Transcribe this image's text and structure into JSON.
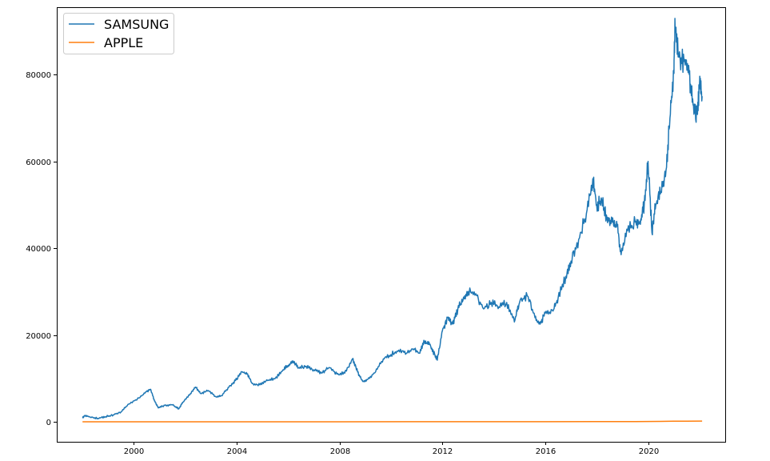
{
  "chart_data": {
    "type": "line",
    "title": "",
    "xlabel": "",
    "ylabel": "",
    "xlim": [
      1997.0,
      2023.0
    ],
    "ylim": [
      -4600,
      95500
    ],
    "x_ticks": [
      2000,
      2004,
      2008,
      2012,
      2016,
      2020
    ],
    "x_tick_labels": [
      "2000",
      "2004",
      "2008",
      "2012",
      "2016",
      "2020"
    ],
    "y_ticks": [
      0,
      20000,
      40000,
      60000,
      80000
    ],
    "y_tick_labels": [
      "0",
      "20000",
      "40000",
      "60000",
      "80000"
    ],
    "grid": false,
    "legend_position": "top-left",
    "series": [
      {
        "name": "SAMSUNG",
        "color": "#1f77b4",
        "points": [
          [
            1998.0,
            1000
          ],
          [
            1998.1,
            1500
          ],
          [
            1998.3,
            1100
          ],
          [
            1998.6,
            800
          ],
          [
            1998.9,
            1200
          ],
          [
            1999.2,
            1600
          ],
          [
            1999.5,
            2300
          ],
          [
            1999.8,
            4100
          ],
          [
            2000.2,
            5500
          ],
          [
            2000.5,
            7000
          ],
          [
            2000.65,
            7500
          ],
          [
            2000.8,
            4800
          ],
          [
            2000.95,
            3200
          ],
          [
            2001.2,
            3800
          ],
          [
            2001.5,
            3900
          ],
          [
            2001.75,
            3000
          ],
          [
            2001.9,
            4500
          ],
          [
            2002.2,
            6500
          ],
          [
            2002.4,
            8000
          ],
          [
            2002.6,
            6500
          ],
          [
            2002.9,
            7200
          ],
          [
            2003.2,
            5700
          ],
          [
            2003.4,
            6000
          ],
          [
            2003.7,
            8000
          ],
          [
            2003.95,
            9500
          ],
          [
            2004.2,
            11500
          ],
          [
            2004.4,
            11000
          ],
          [
            2004.6,
            8800
          ],
          [
            2004.9,
            8500
          ],
          [
            2005.2,
            9500
          ],
          [
            2005.5,
            10000
          ],
          [
            2005.8,
            12000
          ],
          [
            2006.0,
            13000
          ],
          [
            2006.2,
            14000
          ],
          [
            2006.4,
            12500
          ],
          [
            2006.7,
            12800
          ],
          [
            2007.0,
            12000
          ],
          [
            2007.3,
            11200
          ],
          [
            2007.6,
            12500
          ],
          [
            2007.9,
            11000
          ],
          [
            2008.2,
            11200
          ],
          [
            2008.5,
            14500
          ],
          [
            2008.7,
            11500
          ],
          [
            2008.9,
            9300
          ],
          [
            2009.1,
            9800
          ],
          [
            2009.4,
            11500
          ],
          [
            2009.7,
            14500
          ],
          [
            2010.0,
            15500
          ],
          [
            2010.3,
            16500
          ],
          [
            2010.6,
            15800
          ],
          [
            2010.9,
            16800
          ],
          [
            2011.1,
            15800
          ],
          [
            2011.3,
            18500
          ],
          [
            2011.5,
            17800
          ],
          [
            2011.7,
            15500
          ],
          [
            2011.8,
            14200
          ],
          [
            2012.0,
            21000
          ],
          [
            2012.2,
            24000
          ],
          [
            2012.4,
            22500
          ],
          [
            2012.6,
            26000
          ],
          [
            2012.8,
            28000
          ],
          [
            2013.0,
            30000
          ],
          [
            2013.3,
            29500
          ],
          [
            2013.6,
            26000
          ],
          [
            2013.9,
            27500
          ],
          [
            2014.2,
            26500
          ],
          [
            2014.5,
            27500
          ],
          [
            2014.8,
            23000
          ],
          [
            2015.0,
            27500
          ],
          [
            2015.3,
            29000
          ],
          [
            2015.6,
            24000
          ],
          [
            2015.8,
            22500
          ],
          [
            2016.0,
            25000
          ],
          [
            2016.3,
            25500
          ],
          [
            2016.5,
            28500
          ],
          [
            2016.8,
            33500
          ],
          [
            2017.0,
            37000
          ],
          [
            2017.3,
            42000
          ],
          [
            2017.6,
            48000
          ],
          [
            2017.85,
            56000
          ],
          [
            2018.0,
            50000
          ],
          [
            2018.2,
            51000
          ],
          [
            2018.4,
            47000
          ],
          [
            2018.6,
            46000
          ],
          [
            2018.8,
            45000
          ],
          [
            2018.95,
            38500
          ],
          [
            2019.2,
            44000
          ],
          [
            2019.5,
            46000
          ],
          [
            2019.7,
            45500
          ],
          [
            2019.85,
            50000
          ],
          [
            2020.0,
            60000
          ],
          [
            2020.15,
            43500
          ],
          [
            2020.3,
            50000
          ],
          [
            2020.5,
            53000
          ],
          [
            2020.7,
            58000
          ],
          [
            2020.85,
            70000
          ],
          [
            2021.0,
            81000
          ],
          [
            2021.05,
            91000
          ],
          [
            2021.2,
            84000
          ],
          [
            2021.4,
            83000
          ],
          [
            2021.6,
            80000
          ],
          [
            2021.75,
            73000
          ],
          [
            2021.9,
            71000
          ],
          [
            2022.0,
            77500
          ],
          [
            2022.1,
            75000
          ]
        ]
      },
      {
        "name": "APPLE",
        "color": "#ff7f0e",
        "points": [
          [
            1998.0,
            0
          ],
          [
            2004.0,
            1
          ],
          [
            2008.0,
            5
          ],
          [
            2012.0,
            18
          ],
          [
            2014.0,
            22
          ],
          [
            2016.0,
            26
          ],
          [
            2018.0,
            45
          ],
          [
            2019.5,
            55
          ],
          [
            2020.0,
            75
          ],
          [
            2020.5,
            110
          ],
          [
            2021.0,
            130
          ],
          [
            2021.5,
            145
          ],
          [
            2022.1,
            175
          ]
        ]
      }
    ]
  }
}
